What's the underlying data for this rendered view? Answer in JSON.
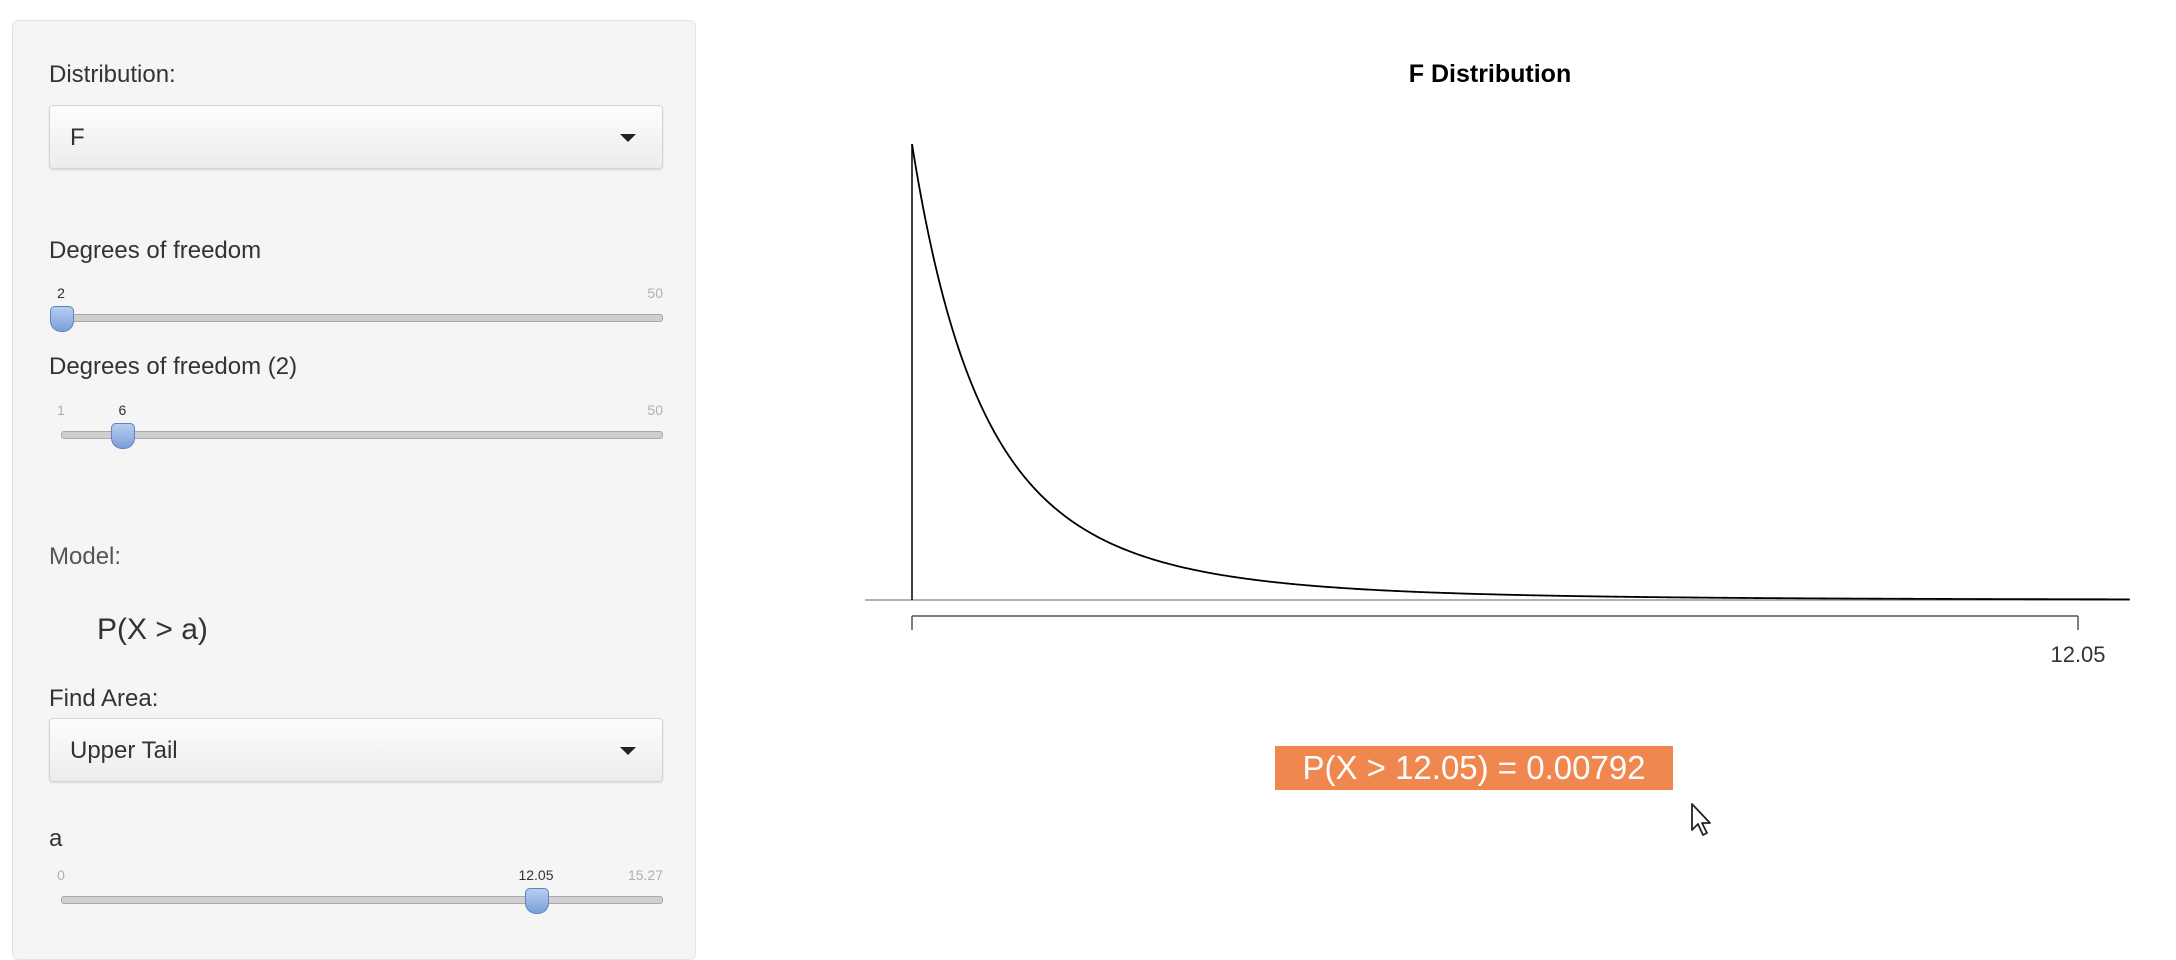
{
  "sidebar": {
    "distribution_label": "Distribution:",
    "distribution_value": "F",
    "df1": {
      "label": "Degrees of freedom",
      "min": "2",
      "max": "50",
      "value": "2",
      "fraction": 0.0
    },
    "df2": {
      "label": "Degrees of freedom (2)",
      "min": "1",
      "max": "50",
      "value": "6",
      "fraction": 0.102
    },
    "model_label": "Model:",
    "model_formula": "P(X > a)",
    "find_area_label": "Find Area:",
    "find_area_value": "Upper Tail",
    "a": {
      "label": "a",
      "min": "0",
      "max": "15.27",
      "value": "12.05",
      "fraction": 0.789
    }
  },
  "chart_data": {
    "type": "area",
    "title": "F Distribution",
    "distribution": "F",
    "df1": 2,
    "df2": 6,
    "shaded_tail": "upper",
    "x_range": [
      0,
      13.2
    ],
    "marked_x": 12.05,
    "tick_labels": [
      "12.05"
    ],
    "xlabel": "",
    "ylabel": ""
  },
  "result": {
    "text": "P(X > 12.05) = 0.00792",
    "color": "#f0874f"
  },
  "icons": {
    "cursor": "mouse-pointer-icon",
    "dropdown": "caret-down-icon"
  }
}
